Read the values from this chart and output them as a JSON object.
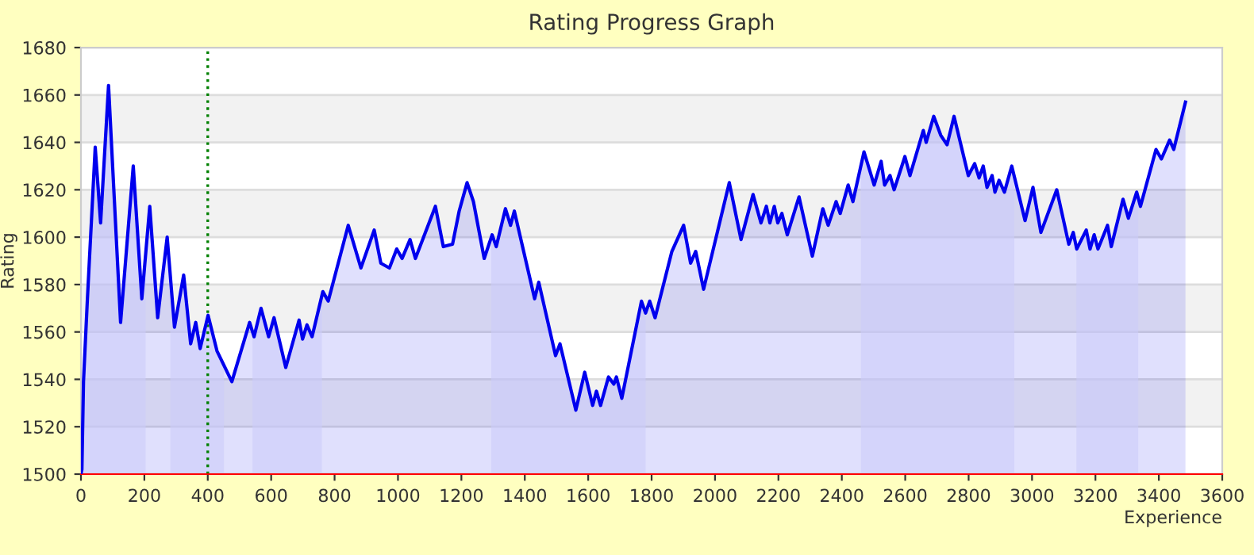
{
  "chart_data": {
    "type": "area",
    "title": "Rating Progress Graph",
    "xlabel": "Experience",
    "ylabel": "Rating",
    "xlim": [
      0,
      3600
    ],
    "xticks": [
      0,
      200,
      400,
      600,
      800,
      1000,
      1200,
      1400,
      1600,
      1800,
      2000,
      2200,
      2400,
      2600,
      2800,
      3000,
      3200,
      3400,
      3600
    ],
    "ylim": [
      1500,
      1680
    ],
    "yticks": [
      1500,
      1520,
      1540,
      1560,
      1580,
      1600,
      1620,
      1640,
      1660,
      1680
    ],
    "grid": "y",
    "legend": false,
    "series": [
      {
        "color": "#0000ee",
        "x": [
          0,
          3,
          8,
          20,
          45,
          62,
          87,
          125,
          165,
          192,
          217,
          242,
          272,
          295,
          324,
          346,
          362,
          376,
          401,
          429,
          476,
          532,
          546,
          568,
          592,
          609,
          646,
          688,
          699,
          713,
          729,
          763,
          780,
          843,
          883,
          925,
          946,
          973,
          996,
          1013,
          1038,
          1055,
          1118,
          1143,
          1172,
          1193,
          1218,
          1238,
          1272,
          1297,
          1310,
          1339,
          1355,
          1367,
          1431,
          1444,
          1497,
          1511,
          1561,
          1589,
          1614,
          1626,
          1639,
          1664,
          1681,
          1689,
          1706,
          1768,
          1781,
          1794,
          1811,
          1864,
          1901,
          1923,
          1939,
          1964,
          2045,
          2082,
          2120,
          2145,
          2162,
          2173,
          2187,
          2198,
          2211,
          2228,
          2265,
          2307,
          2340,
          2357,
          2382,
          2395,
          2420,
          2435,
          2470,
          2502,
          2524,
          2535,
          2552,
          2565,
          2599,
          2615,
          2657,
          2666,
          2690,
          2712,
          2732,
          2754,
          2799,
          2819,
          2833,
          2846,
          2858,
          2874,
          2883,
          2896,
          2913,
          2936,
          2978,
          3003,
          3028,
          3078,
          3116,
          3130,
          3141,
          3171,
          3183,
          3196,
          3208,
          3238,
          3250,
          3287,
          3304,
          3330,
          3342,
          3391,
          3408,
          3434,
          3447,
          3484
        ],
        "values": [
          1500,
          1502,
          1539,
          1573,
          1638,
          1606,
          1664,
          1564,
          1630,
          1574,
          1613,
          1566,
          1600,
          1562,
          1584,
          1555,
          1564,
          1553,
          1567,
          1552,
          1539,
          1564,
          1558,
          1570,
          1558,
          1566,
          1545,
          1565,
          1557,
          1563,
          1558,
          1577,
          1573,
          1605,
          1587,
          1603,
          1589,
          1587,
          1595,
          1591,
          1599,
          1591,
          1613,
          1596,
          1597,
          1611,
          1623,
          1615,
          1591,
          1601,
          1596,
          1612,
          1605,
          1611,
          1574,
          1581,
          1550,
          1555,
          1527,
          1543,
          1529,
          1535,
          1529,
          1541,
          1538,
          1541,
          1532,
          1573,
          1568,
          1573,
          1566,
          1594,
          1605,
          1589,
          1594,
          1578,
          1623,
          1599,
          1618,
          1606,
          1613,
          1606,
          1613,
          1606,
          1610,
          1601,
          1617,
          1592,
          1612,
          1605,
          1615,
          1610,
          1622,
          1615,
          1636,
          1622,
          1632,
          1622,
          1626,
          1620,
          1634,
          1626,
          1645,
          1640,
          1651,
          1643,
          1639,
          1651,
          1626,
          1631,
          1625,
          1630,
          1621,
          1626,
          1619,
          1624,
          1619,
          1630,
          1607,
          1621,
          1602,
          1620,
          1597,
          1602,
          1595,
          1603,
          1595,
          1601,
          1595,
          1605,
          1596,
          1616,
          1608,
          1619,
          1613,
          1637,
          1633,
          1641,
          1637,
          1657
        ]
      }
    ],
    "bands": [
      {
        "axis": "x",
        "from": 0,
        "to": 204,
        "color": "#ccccfa"
      },
      {
        "axis": "x",
        "from": 282,
        "to": 451,
        "color": "#ccccfa"
      },
      {
        "axis": "x",
        "from": 541,
        "to": 760,
        "color": "#ccccfa"
      },
      {
        "axis": "x",
        "from": 1294,
        "to": 1781,
        "color": "#ccccfa"
      },
      {
        "axis": "x",
        "from": 2460,
        "to": 2944,
        "color": "#ccccfa"
      },
      {
        "axis": "x",
        "from": 3140,
        "to": 3335,
        "color": "#ccccfa"
      }
    ],
    "ref_lines": [
      {
        "axis": "x",
        "value": 400,
        "color": "#008000",
        "line_style": "dotted"
      }
    ]
  }
}
